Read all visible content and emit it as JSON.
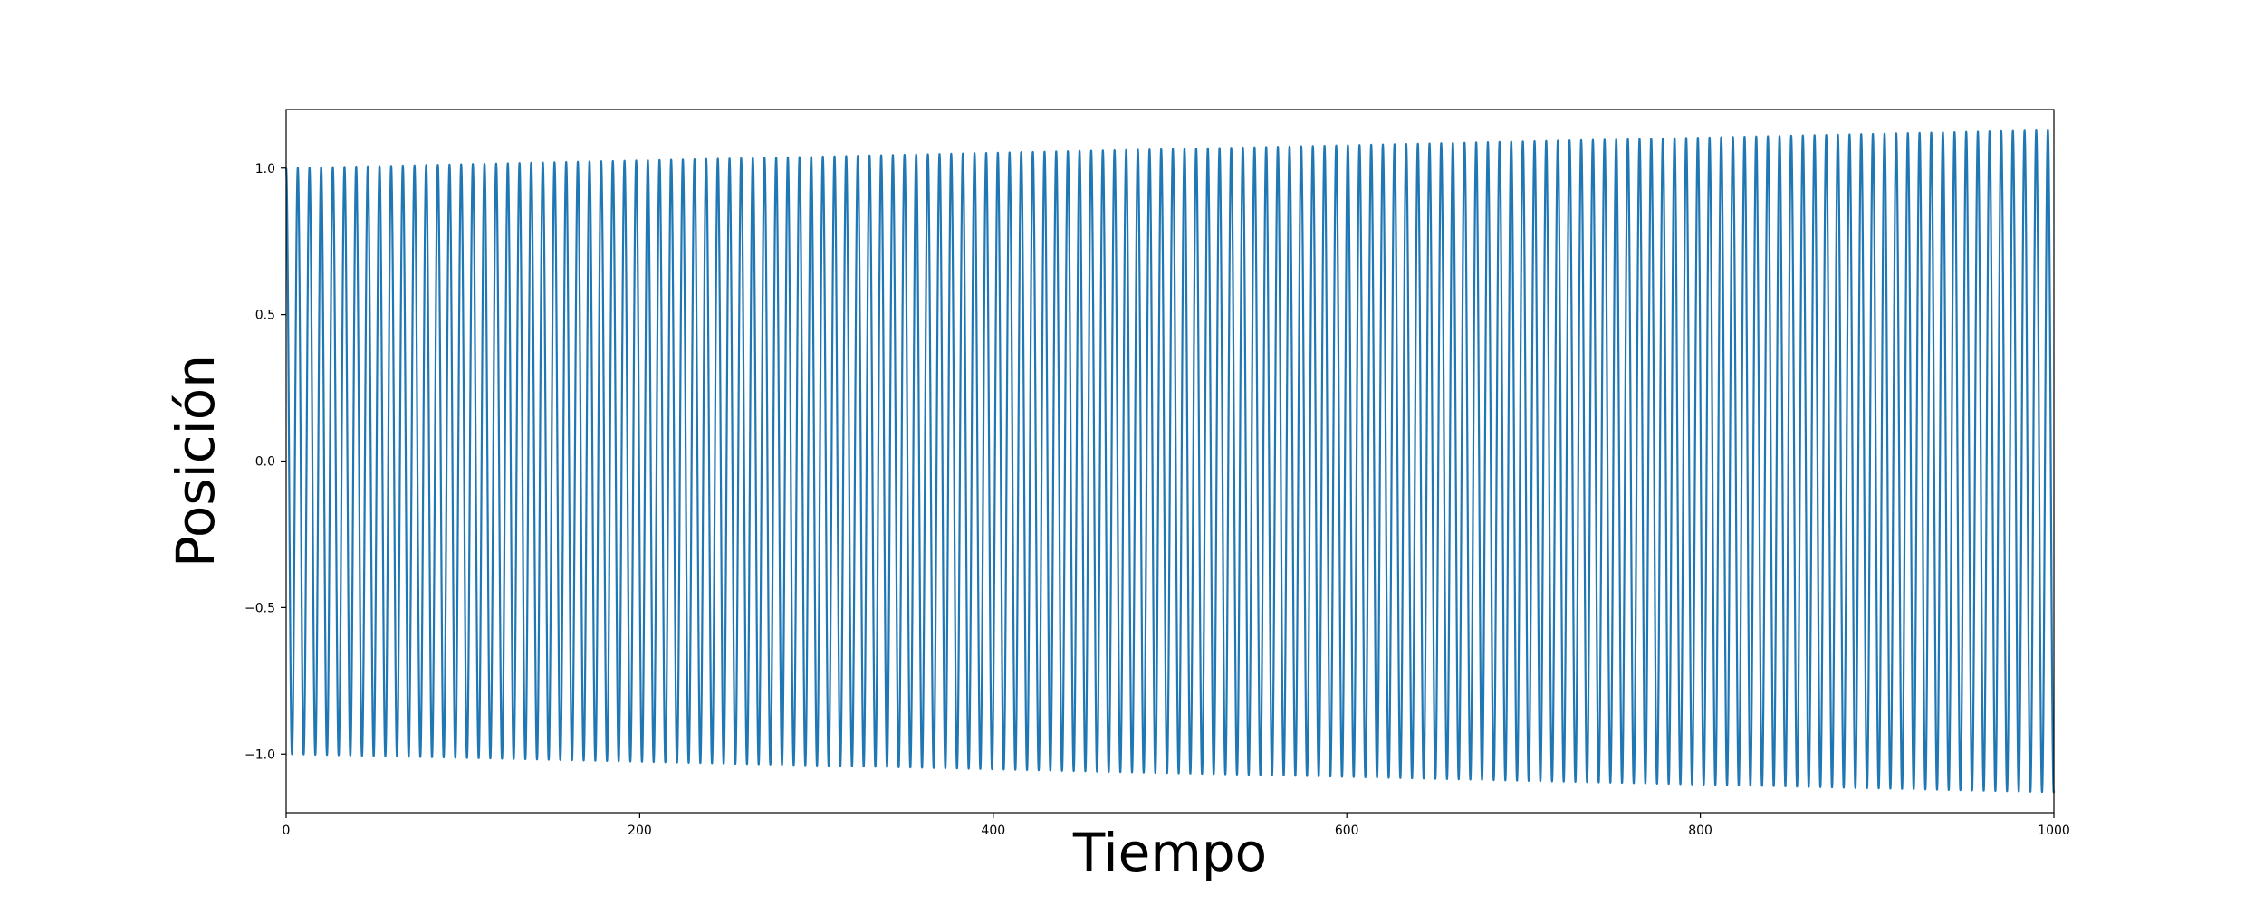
{
  "chart_data": {
    "type": "line",
    "title": "",
    "xlabel": "Tiempo",
    "ylabel": "Posición",
    "xlim": [
      0,
      1000
    ],
    "ylim": [
      -1.2,
      1.2
    ],
    "x_ticks": [
      0,
      200,
      400,
      600,
      800,
      1000
    ],
    "x_tick_labels": [
      "0",
      "200",
      "400",
      "600",
      "800",
      "1000"
    ],
    "y_ticks": [
      -1.0,
      -0.5,
      0.0,
      0.5,
      1.0
    ],
    "y_tick_labels": [
      "−1.0",
      "−0.5",
      "0.0",
      "0.5",
      "1.0"
    ],
    "grid": false,
    "legend": "none",
    "line_color": "#1f77b4",
    "series": [
      {
        "oscillation_period": 6.6,
        "amplitude_at_start": 1.0,
        "amplitude_at_end": 1.13,
        "x_start": 0,
        "x_end": 1000,
        "initial_value": 1.0
      }
    ]
  }
}
